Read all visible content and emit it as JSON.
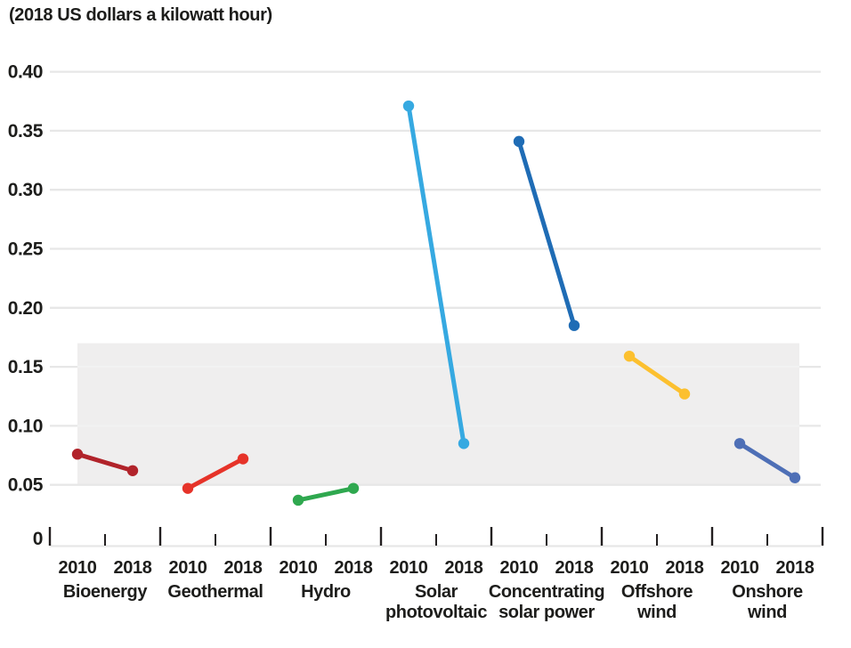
{
  "chart_data": {
    "type": "line",
    "subtype": "paired-slope",
    "title": "(2018 US dollars a kilowatt hour)",
    "x_pair_labels": [
      "2010",
      "2018"
    ],
    "y_ticks": [
      0,
      0.05,
      0.1,
      0.15,
      0.2,
      0.25,
      0.3,
      0.35,
      0.4
    ],
    "y_tick_labels": [
      "0",
      "0.05",
      "0.10",
      "0.15",
      "0.20",
      "0.25",
      "0.30",
      "0.35",
      "0.40"
    ],
    "ylim": [
      0,
      0.4
    ],
    "grid": "horizontal",
    "legend_position": "none",
    "background_band": {
      "from": 0.05,
      "to": 0.17,
      "color": "#efeeee"
    },
    "series": [
      {
        "name": "Bioenergy",
        "label_lines": [
          "Bioenergy"
        ],
        "color": "#b1232a",
        "values": {
          "2010": 0.076,
          "2018": 0.062
        }
      },
      {
        "name": "Geothermal",
        "label_lines": [
          "Geothermal"
        ],
        "color": "#e63329",
        "values": {
          "2010": 0.047,
          "2018": 0.072
        }
      },
      {
        "name": "Hydro",
        "label_lines": [
          "Hydro"
        ],
        "color": "#2fa84f",
        "values": {
          "2010": 0.037,
          "2018": 0.047
        }
      },
      {
        "name": "Solar photovoltaic",
        "label_lines": [
          "Solar",
          "photovoltaic"
        ],
        "color": "#36a9e1",
        "values": {
          "2010": 0.371,
          "2018": 0.085
        }
      },
      {
        "name": "Concentrating solar power",
        "label_lines": [
          "Concentrating",
          "solar power"
        ],
        "color": "#1f6cb5",
        "values": {
          "2010": 0.341,
          "2018": 0.185
        }
      },
      {
        "name": "Offshore wind",
        "label_lines": [
          "Offshore",
          "wind"
        ],
        "color": "#fcc02f",
        "values": {
          "2010": 0.159,
          "2018": 0.127
        }
      },
      {
        "name": "Onshore wind",
        "label_lines": [
          "Onshore",
          "wind"
        ],
        "color": "#4e6fb6",
        "values": {
          "2010": 0.085,
          "2018": 0.056
        }
      }
    ],
    "colors": {
      "grid": "#e7e7e7",
      "band": "#efeeee",
      "tick": "#231f20",
      "text": "#1d1d1b"
    }
  }
}
